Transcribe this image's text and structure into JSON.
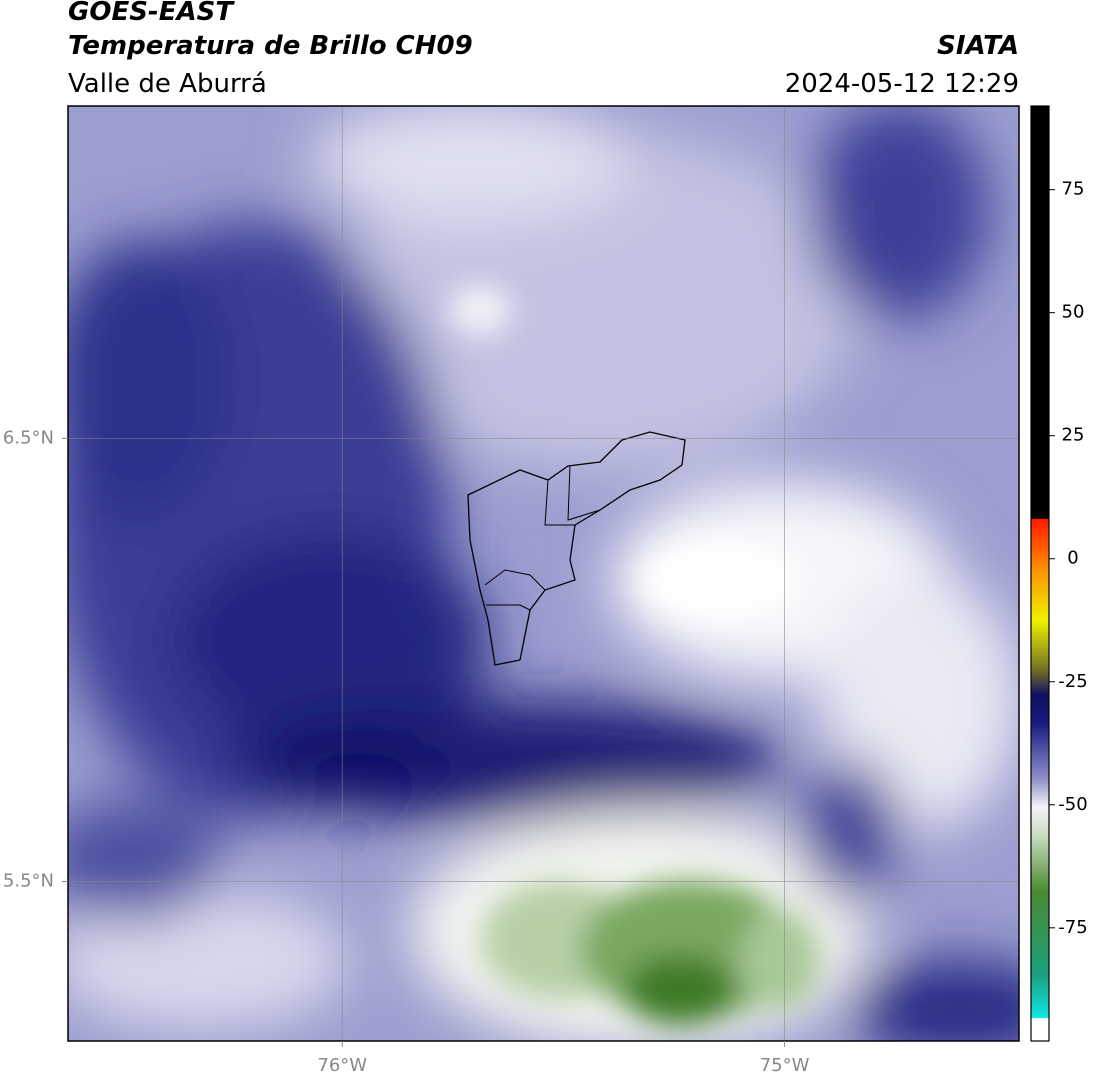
{
  "header": {
    "title": "GOES-EAST",
    "subtitle": "Temperatura de Brillo CH09",
    "region": "Valle de Aburrá",
    "source": "SIATA",
    "datetime": "2024-05-12 12:29"
  },
  "map": {
    "xlim": [
      -76.62,
      -74.47
    ],
    "ylim": [
      5.14,
      7.25
    ],
    "xticks": [
      {
        "value": -76,
        "label": "76°W"
      },
      {
        "value": -75,
        "label": "75°W"
      }
    ],
    "yticks": [
      {
        "value": 5.5,
        "label": "5.5°N"
      },
      {
        "value": 6.5,
        "label": "6.5°N"
      }
    ],
    "grid": true
  },
  "colorbar": {
    "clim": [
      -98,
      92
    ],
    "ticks": [
      -75,
      -50,
      -25,
      0,
      25,
      50,
      75
    ]
  }
}
